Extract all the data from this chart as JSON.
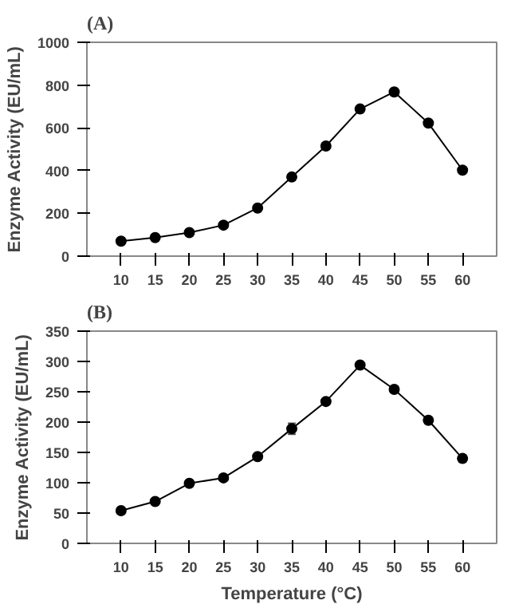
{
  "chart_data": [
    {
      "type": "line",
      "title": "(A)",
      "ylabel": "Enzyme Activity (EU/mL)",
      "x": [
        10,
        15,
        20,
        25,
        30,
        35,
        40,
        45,
        50,
        55,
        60
      ],
      "xlim": [
        5,
        65
      ],
      "xticks": [
        10,
        15,
        20,
        25,
        30,
        35,
        40,
        45,
        50,
        55,
        60
      ],
      "ylim": [
        0,
        1000
      ],
      "yticks": [
        0,
        200,
        400,
        600,
        800,
        1000
      ],
      "grid": false,
      "marker": "circle",
      "series": [
        {
          "color": "#000000",
          "values": [
            70,
            87,
            110,
            145,
            225,
            370,
            515,
            688,
            768,
            622,
            402
          ],
          "errors": [
            14,
            8,
            8,
            8,
            8,
            8,
            14,
            14,
            16,
            12,
            10
          ]
        }
      ]
    },
    {
      "type": "line",
      "title": "(B)",
      "xlabel": "Temperature (°C)",
      "ylabel": "Enzyme Activity (EU/mL)",
      "x": [
        10,
        15,
        20,
        25,
        30,
        35,
        40,
        45,
        50,
        55,
        60
      ],
      "xlim": [
        5,
        65
      ],
      "xticks": [
        10,
        15,
        20,
        25,
        30,
        35,
        40,
        45,
        50,
        55,
        60
      ],
      "ylim": [
        0,
        350
      ],
      "yticks": [
        0,
        50,
        100,
        150,
        200,
        250,
        300,
        350
      ],
      "grid": false,
      "marker": "circle",
      "series": [
        {
          "color": "#000000",
          "values": [
            54,
            69,
            99,
            108,
            143,
            189,
            234,
            294,
            254,
            203,
            140
          ],
          "errors": [
            2,
            2,
            4,
            2,
            2,
            9,
            3,
            2,
            4,
            3,
            6
          ]
        }
      ]
    }
  ]
}
